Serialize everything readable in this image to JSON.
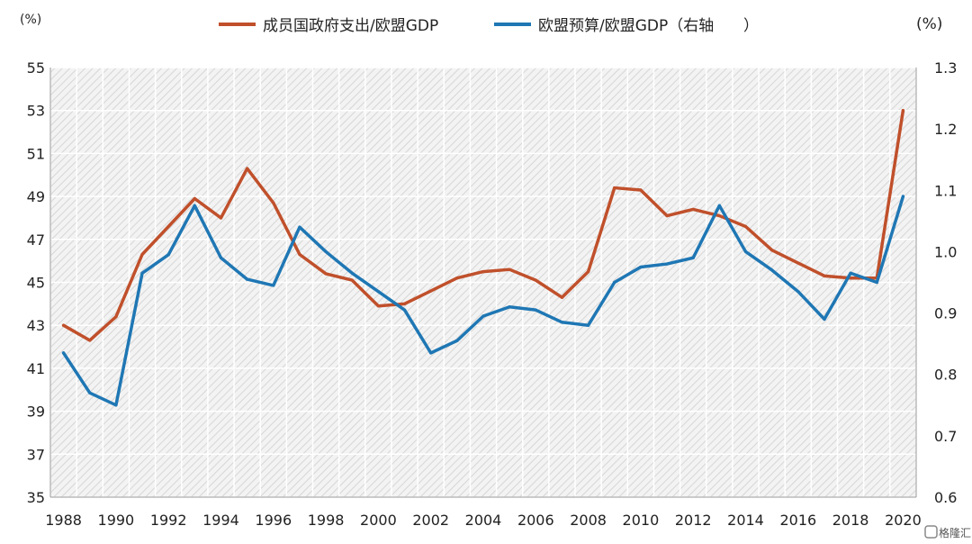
{
  "chart_data": {
    "type": "line",
    "x": [
      1988,
      1989,
      1990,
      1991,
      1992,
      1993,
      1994,
      1995,
      1996,
      1997,
      1998,
      1999,
      2000,
      2001,
      2002,
      2003,
      2004,
      2005,
      2006,
      2007,
      2008,
      2009,
      2010,
      2011,
      2012,
      2013,
      2014,
      2015,
      2016,
      2017,
      2018,
      2019,
      2020
    ],
    "x_tick_labels": [
      "1988",
      "1990",
      "1992",
      "1994",
      "1996",
      "1998",
      "2000",
      "2002",
      "2004",
      "2006",
      "2008",
      "2010",
      "2012",
      "2014",
      "2016",
      "2018",
      "2020"
    ],
    "left_axis": {
      "unit": "(%)",
      "ylim": [
        35,
        55
      ],
      "ticks": [
        "35",
        "37",
        "39",
        "41",
        "43",
        "45",
        "47",
        "49",
        "51",
        "53",
        "55"
      ]
    },
    "right_axis": {
      "unit": "(%)",
      "ylim": [
        0.6,
        1.3
      ],
      "ticks": [
        "0.6",
        "0.7",
        "0.8",
        "0.9",
        "1.0",
        "1.1",
        "1.2",
        "1.3"
      ]
    },
    "series": [
      {
        "name": "成员国政府支出/欧盟GDP",
        "axis": "left",
        "color": "#c0502b",
        "values": [
          43.0,
          42.3,
          43.4,
          46.3,
          47.6,
          48.9,
          48.0,
          50.3,
          48.7,
          46.3,
          45.4,
          45.1,
          43.9,
          44.0,
          44.6,
          45.2,
          45.5,
          45.6,
          45.1,
          44.3,
          45.5,
          49.4,
          49.3,
          48.1,
          48.4,
          48.1,
          47.6,
          46.5,
          45.9,
          45.3,
          45.2,
          45.2,
          53.0
        ]
      },
      {
        "name": "欧盟预算/欧盟GDP（右轴",
        "axis": "right",
        "color": "#1f77b4",
        "values": [
          0.835,
          0.77,
          0.75,
          0.965,
          0.995,
          1.075,
          0.99,
          0.955,
          0.945,
          1.04,
          1.0,
          0.965,
          0.935,
          0.905,
          0.835,
          0.855,
          0.895,
          0.91,
          0.905,
          0.885,
          0.88,
          0.95,
          0.975,
          0.98,
          0.99,
          1.075,
          1.0,
          0.97,
          0.935,
          0.89,
          0.965,
          0.95,
          1.09
        ]
      }
    ],
    "grid": true,
    "legend_position": "top-center"
  },
  "watermark": {
    "text": "格隆汇"
  }
}
